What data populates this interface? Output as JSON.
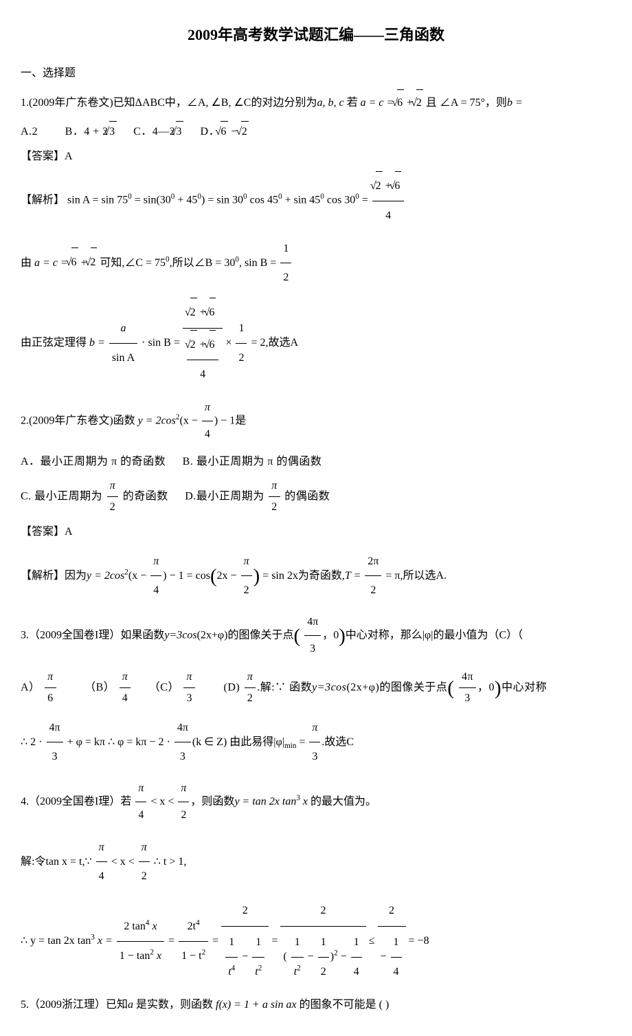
{
  "title": "2009年高考数学试题汇编——三角函数",
  "section1": "一、选择题",
  "answer_label": "【答案】",
  "solution_label": "【解析】",
  "q1": {
    "prefix": "1.(2009年广东卷文)已知",
    "triangle": "ΔABC",
    "mid1": "中，",
    "angles": "∠A, ∠B, ∠C",
    "mid2": "的对边分别为",
    "sides": "a, b, c",
    "mid3": " 若 ",
    "eq1_lhs": "a = c = ",
    "sqrt6": "6",
    "plus": " + ",
    "sqrt2": "2",
    "and": " 且 ",
    "angleA": "∠A = 75°",
    "then": "，则",
    "find": "b =",
    "choice_A_label": "A.",
    "choice_A": "2",
    "choice_B_label": "B．",
    "choice_B_pre": "4 + 2",
    "choice_B_sqrt": "3",
    "choice_C_label": "C．",
    "choice_C_pre": "4—2",
    "choice_C_sqrt": "3",
    "choice_D_label": "D．",
    "choice_D_sqrt1": "6",
    "choice_D_minus": " − ",
    "choice_D_sqrt2": "2",
    "answer": "A",
    "sol_sin": "sin A = sin 75",
    "sol_deg": "0",
    "sol_eq1": " = sin(30",
    "sol_eq2": " + 45",
    "sol_eq3": ") = sin 30",
    "sol_eq4": " cos 45",
    "sol_eq5": " + sin 45",
    "sol_eq6": " cos 30",
    "sol_eq7": " = ",
    "sol_frac_num_sqrt1": "2",
    "sol_frac_num_plus": " + ",
    "sol_frac_num_sqrt2": "6",
    "sol_frac_den": "4",
    "sol_line2_pre": "由 ",
    "sol_line2_eq": "a = c = ",
    "sol_line2_know": " 可知,",
    "sol_line2_C": "∠C = 75",
    "sol_line2_so": ",所以",
    "sol_line2_B": "∠B = 30",
    "sol_line2_sinB": ", sin B = ",
    "sol_sinB_num": "1",
    "sol_sinB_den": "2",
    "sol_line3_pre": "由正弦定理得 ",
    "sol_line3_b": "b = ",
    "sol_line3_a": "a",
    "sol_line3_sinA": "sin A",
    "sol_line3_dot": " · sin B = ",
    "sol_line3_times": " × ",
    "sol_line3_eq": " = 2",
    "sol_line3_end": ",故选A"
  },
  "q2": {
    "prefix": "2.(2009年广东卷文)函数",
    "func": "y = 2cos",
    "sq": "2",
    "arg_pre": "(x − ",
    "pi": "π",
    "arg_den": "4",
    "arg_post": ") − 1",
    "is": "是",
    "choice_A": "A．最小正周期为 π 的奇函数",
    "choice_B": "B. 最小正周期为 π 的偶函数",
    "choice_C_pre": "C. 最小正周期为 ",
    "choice_C_den": "2",
    "choice_C_post": " 的奇函数",
    "choice_D_pre": "D.最小正周期为 ",
    "choice_D_den": "2",
    "choice_D_post": " 的偶函数",
    "answer": "A",
    "sol_pre": "因为",
    "sol_y": "y = 2cos",
    "sol_arg1": "(x − ",
    "sol_arg1_den": "4",
    "sol_arg1_post": ") − 1 = cos",
    "sol_arg2_pre": "2x − ",
    "sol_arg2_den": "2",
    "sol_eq_sin": " = sin 2x",
    "sol_odd": "为奇函数,",
    "sol_T": "T = ",
    "sol_T_num": "2π",
    "sol_T_den": "2",
    "sol_T_eq": " = π",
    "sol_end": ",所以选A."
  },
  "q3": {
    "prefix": "3.（2009全国卷I理）如果函数",
    "func": "y=3cos",
    "arg": "(2x+φ)",
    "mid": "的图像关于点",
    "pt_num": "4π",
    "pt_den": "3",
    "pt_y": "0",
    "mid2": "中心对称，那么",
    "abs": "|φ|",
    "mid3": "的最小值为（C）（",
    "choice_A_label": "A）",
    "choice_A_den": "6",
    "choice_B_label": "（B）",
    "choice_B_den": "4",
    "choice_C_label": "（C）",
    "choice_C_den": "3",
    "choice_D_label": "(D) ",
    "choice_D_den": "2",
    "sol_pre": ".解:∵ 函数",
    "sol_func": "y=3cos",
    "sol_arg": "(2x+φ)",
    "sol_mid": "的图像关于点",
    "sol_mid2": "中心对称",
    "sol_line2_pre": "∴ 2 · ",
    "sol_line2_plus": " + φ = kπ",
    "sol_line2_so": " ∴ φ = kπ − 2 · ",
    "sol_line2_k": "(k ∈ Z) ",
    "sol_line2_easy": "由此易得",
    "sol_line2_min": "|φ|",
    "sol_line2_sub": "min",
    "sol_line2_eq": " = ",
    "sol_line2_end": ".故选C"
  },
  "q4": {
    "prefix": "4.（2009全国卷I理）若",
    "ineq_den1": "4",
    "ineq_mid": " < x < ",
    "ineq_den2": "2",
    "then": "，则函数",
    "func": "y = tan 2x tan",
    "cube": "3",
    "func_x": " x",
    "max": " 的最大值为。",
    "sol_line1_pre": "解:令",
    "sol_line1_tan": "tan x = t,",
    "sol_line1_since": "∵ ",
    "sol_line1_so": " ∴ t > 1,",
    "sol_line2_pre": "∴ y = tan 2x tan",
    "sol_line2_x": " x = ",
    "sol_frac1_num": "2 tan",
    "sol_frac1_num_exp": "4",
    "sol_frac1_num_x": " x",
    "sol_frac1_den": "1 − tan",
    "sol_frac1_den_exp": "2",
    "sol_frac1_den_x": " x",
    "sol_eq1": " = ",
    "sol_frac2_num": "2t",
    "sol_frac2_num_exp": "4",
    "sol_frac2_den": "1 − t",
    "sol_frac2_den_exp": "2",
    "sol_eq2": " = ",
    "sol_frac3_num": "2",
    "sol_frac3_den_t4": "t",
    "sol_frac3_den_exp4": "4",
    "sol_frac3_den_minus": " − ",
    "sol_frac3_den_t2": "t",
    "sol_frac3_den_exp2": "2",
    "sol_eq3": " = ",
    "sol_frac4_num": "2",
    "sol_frac4_den_pre": "(",
    "sol_frac4_1": "1",
    "sol_frac4_t2": "t",
    "sol_frac4_exp": "2",
    "sol_frac4_minus": " − ",
    "sol_frac4_half_num": "1",
    "sol_frac4_half_den": "2",
    "sol_frac4_den_post": ")",
    "sol_frac4_sq": "2",
    "sol_frac4_minus2": " − ",
    "sol_frac4_q_num": "1",
    "sol_frac4_q_den": "4",
    "sol_leq": " ≤ ",
    "sol_frac5_num": "2",
    "sol_frac5_den_pre": "− ",
    "sol_frac5_den_num": "1",
    "sol_frac5_den_den": "4",
    "sol_eq4": " = −8"
  },
  "q5": {
    "prefix": "5.（2009浙江理）已知",
    "a": "a",
    "mid": " 是实数，则函数 ",
    "func": "f(x) = 1 + a sin ax",
    "post": " 的图象不可能是 (    )"
  },
  "colors": {
    "text": "#000000",
    "bg": "#ffffff"
  },
  "fonts": {
    "body_size": 16,
    "title_size": 22
  }
}
